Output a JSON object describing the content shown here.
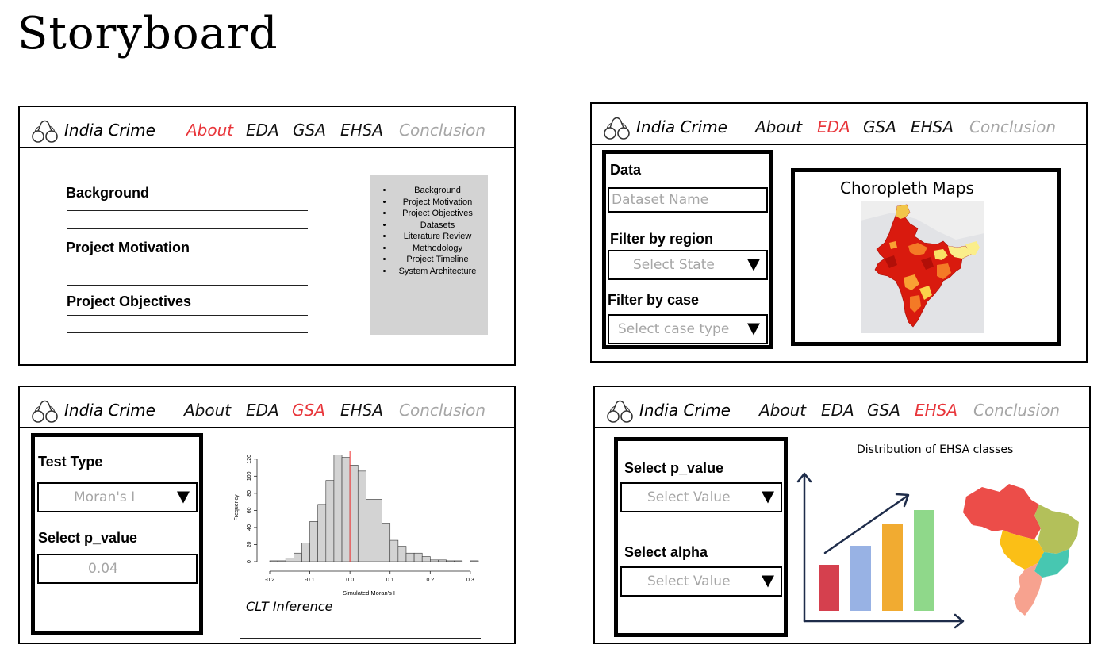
{
  "page_title": "Storyboard",
  "nav": {
    "brand": "India Crime",
    "about": "About",
    "eda": "EDA",
    "gsa": "GSA",
    "ehsa": "EHSA",
    "conclusion": "Conclusion"
  },
  "colors": {
    "active_tab": "#e8353a",
    "muted_tab": "#a6a6a6",
    "toc_background": "#d3d3d3",
    "placeholder_text": "#a6a6a6"
  },
  "about_panel": {
    "active_tab": "About",
    "sections": [
      "Background",
      "Project Motivation",
      "Project Objectives"
    ],
    "toc_items": [
      "Background",
      "Project Motivation",
      "Project Objectives",
      "Datasets",
      "Literature Review",
      "Methodology",
      "Project Timeline",
      "System Architecture"
    ]
  },
  "eda_panel": {
    "active_tab": "EDA",
    "data_label": "Data",
    "dataset_placeholder": "Dataset Name",
    "region_label": "Filter by  region",
    "state_placeholder": "Select State",
    "case_label": "Filter by case",
    "case_placeholder": "Select case type",
    "map_title": "Choropleth Maps"
  },
  "gsa_panel": {
    "active_tab": "GSA",
    "test_type_label": "Test Type",
    "test_type_value": "Moran's I",
    "p_value_label": "Select p_value",
    "p_value_value": "0.04",
    "histogram": {
      "ylabel": "Frequency",
      "xlabel": "Simulated Moran's I",
      "y_ticks": [
        "0",
        "20",
        "40",
        "60",
        "80",
        "100",
        "120"
      ],
      "x_ticks": [
        "-0.2",
        "-0.1",
        "0.0",
        "0.1",
        "0.2",
        "0.3"
      ]
    },
    "inference_title": "CLT Inference"
  },
  "ehsa_panel": {
    "active_tab": "EHSA",
    "p_value_label": "Select p_value",
    "p_value_placeholder": "Select Value",
    "alpha_label": "Select alpha",
    "alpha_placeholder": "Select Value",
    "chart_title": "Distribution of EHSA classes"
  },
  "chart_data": {
    "type": "bar",
    "title": "",
    "xlabel": "Simulated Moran's I",
    "ylabel": "Frequency",
    "bin_width": 0.02,
    "bin_starts": [
      -0.2,
      -0.18,
      -0.16,
      -0.14,
      -0.12,
      -0.1,
      -0.08,
      -0.06,
      -0.04,
      -0.02,
      0.0,
      0.02,
      0.04,
      0.06,
      0.08,
      0.1,
      0.12,
      0.14,
      0.16,
      0.18,
      0.2,
      0.22,
      0.24,
      0.26,
      0.28,
      0.3
    ],
    "values": [
      1,
      1,
      4,
      10,
      22,
      47,
      67,
      95,
      125,
      122,
      113,
      106,
      73,
      73,
      45,
      25,
      18,
      10,
      10,
      6,
      2,
      2,
      1,
      1,
      0,
      1
    ],
    "reference_line_x": 0.0,
    "xlim": [
      -0.2,
      0.32
    ],
    "ylim": [
      0,
      130
    ],
    "grid": false
  }
}
